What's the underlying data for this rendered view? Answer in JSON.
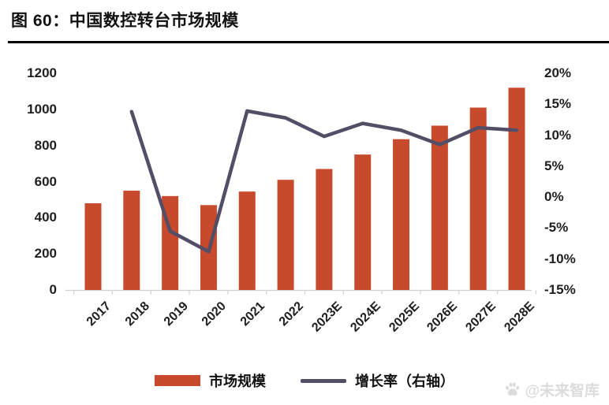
{
  "header": {
    "title": "图 60：中国数控转台市场规模"
  },
  "legend": [
    {
      "label": "市场规模",
      "type": "bar"
    },
    {
      "label": "增长率（右轴）",
      "type": "line"
    }
  ],
  "watermark": {
    "icon": "paw-icon",
    "text": "@未来智库"
  },
  "chart_data": {
    "type": "bar",
    "title": "中国数控转台市场规模",
    "categories": [
      "2017",
      "2018",
      "2019",
      "2020",
      "2021",
      "2022",
      "2023E",
      "2024E",
      "2025E",
      "2026E",
      "2027E",
      "2028E"
    ],
    "series": [
      {
        "name": "市场规模",
        "type": "bar",
        "axis": "left",
        "values": [
          480,
          550,
          520,
          470,
          545,
          610,
          670,
          750,
          835,
          910,
          1010,
          1120
        ]
      },
      {
        "name": "增长率（右轴）",
        "type": "line",
        "axis": "right",
        "x": [
          "2018",
          "2019",
          "2020",
          "2021",
          "2022",
          "2023E",
          "2024E",
          "2025E",
          "2026E",
          "2027E",
          "2028E"
        ],
        "values_pct": [
          13.8,
          -5.5,
          -8.8,
          13.9,
          12.8,
          9.8,
          11.9,
          10.8,
          8.5,
          11.2,
          10.8
        ]
      }
    ],
    "left_axis": {
      "ticks": [
        "1200",
        "1000",
        "800",
        "600",
        "400",
        "200",
        "0"
      ],
      "min": 0,
      "max": 1200
    },
    "right_axis": {
      "ticks": [
        "20%",
        "15%",
        "10%",
        "5%",
        "0%",
        "-5%",
        "-10%",
        "-15%"
      ],
      "min": -15,
      "max": 20
    },
    "grid": false,
    "legend_position": "bottom",
    "colors": {
      "bar": "#C84A2C",
      "line": "#534D66",
      "axis_line": "#d0d0d0"
    }
  }
}
